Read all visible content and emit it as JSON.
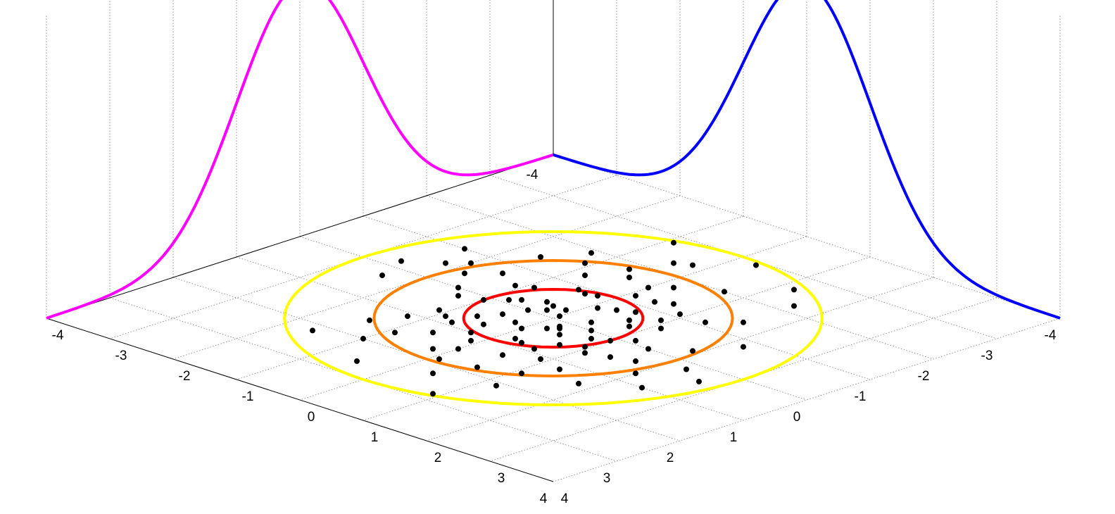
{
  "chart_data": {
    "type": "scatter",
    "subtype": "3d-bivariate-normal-with-marginals",
    "title": "",
    "xlabel": "",
    "ylabel": "",
    "zlabel": "",
    "xlim": [
      -4,
      4
    ],
    "ylim": [
      -4,
      4
    ],
    "x_ticks": [
      "-4",
      "-3",
      "-2",
      "-1",
      "0",
      "1",
      "2",
      "3",
      "4"
    ],
    "y_ticks": [
      "-4",
      "-3",
      "-2",
      "-1",
      "0",
      "1",
      "2",
      "3",
      "4"
    ],
    "x_tick_values": [
      -4,
      -3,
      -2,
      -1,
      0,
      1,
      2,
      3,
      4
    ],
    "y_tick_values": [
      -4,
      -3,
      -2,
      -1,
      0,
      1,
      2,
      3,
      4
    ],
    "grid": true,
    "distribution": {
      "mean": [
        0,
        0
      ],
      "sigma_x": 1.0,
      "sigma_y": 1.0
    },
    "marginal_curves": [
      {
        "axis": "x",
        "color": "#ff00ff",
        "x": [
          -4,
          -3.5,
          -3,
          -2.5,
          -2,
          -1.5,
          -1,
          -0.5,
          0,
          0.5,
          1,
          1.5,
          2,
          2.5,
          3,
          3.5,
          4
        ],
        "density": [
          0.0001,
          0.0009,
          0.0044,
          0.0175,
          0.054,
          0.1295,
          0.242,
          0.3521,
          0.3989,
          0.3521,
          0.242,
          0.1295,
          0.054,
          0.0175,
          0.0044,
          0.0009,
          0.0001
        ]
      },
      {
        "axis": "y",
        "color": "#0000ff",
        "x": [
          -4,
          -3.5,
          -3,
          -2.5,
          -2,
          -1.5,
          -1,
          -0.5,
          0,
          0.5,
          1,
          1.5,
          2,
          2.5,
          3,
          3.5,
          4
        ],
        "density": [
          0.0001,
          0.0009,
          0.0044,
          0.0175,
          0.054,
          0.1295,
          0.242,
          0.3521,
          0.3989,
          0.3521,
          0.242,
          0.1295,
          0.054,
          0.0175,
          0.0044,
          0.0009,
          0.0001
        ]
      }
    ],
    "contours": [
      {
        "sigma": 1,
        "color": "#ff0000"
      },
      {
        "sigma": 2,
        "color": "#ff8000"
      },
      {
        "sigma": 3,
        "color": "#ffff00"
      }
    ],
    "series": [
      {
        "color": "#000000",
        "points": [
          [
            -0.5,
            -2.2
          ],
          [
            2.1,
            1.2
          ],
          [
            -2.4,
            -0.2
          ],
          [
            -2.9,
            0.3
          ],
          [
            0.4,
            2.7
          ],
          [
            -0.8,
            2.2
          ],
          [
            1.6,
            -0.9
          ],
          [
            -1.4,
            1.6
          ],
          [
            0.3,
            -2.4
          ],
          [
            -1.9,
            -1.3
          ],
          [
            -0.3,
            1.9
          ],
          [
            1.9,
            0.1
          ],
          [
            -2.6,
            1.2
          ],
          [
            2.6,
            -0.5
          ],
          [
            -0.7,
            -1.5
          ],
          [
            1.2,
            1.3
          ],
          [
            -1.2,
            0.4
          ],
          [
            0.7,
            -1.1
          ],
          [
            -0.4,
            0.8
          ],
          [
            1.3,
            0.5
          ],
          [
            0.5,
            1.4
          ],
          [
            -1.6,
            -0.4
          ],
          [
            0.2,
            0.3
          ],
          [
            -0.9,
            -0.2
          ],
          [
            0.8,
            0.2
          ],
          [
            -0.1,
            -0.8
          ],
          [
            1.0,
            -0.3
          ],
          [
            -0.6,
            1.1
          ],
          [
            0.3,
            -0.5
          ],
          [
            -1.1,
            0.9
          ],
          [
            1.5,
            -1.4
          ],
          [
            -1.3,
            -0.8
          ],
          [
            0.6,
            0.7
          ],
          [
            -0.3,
            -0.3
          ],
          [
            0.1,
            1.0
          ],
          [
            1.1,
            0.9
          ],
          [
            -0.8,
            0.5
          ],
          [
            0.4,
            -0.2
          ],
          [
            -0.2,
            0.4
          ],
          [
            0.9,
            -0.7
          ],
          [
            -1.7,
            0.2
          ],
          [
            1.7,
            -0.2
          ],
          [
            -0.5,
            -1.1
          ],
          [
            0.2,
            -1.3
          ],
          [
            -1.4,
            -1.6
          ],
          [
            1.4,
            1.8
          ],
          [
            -2.0,
            0.7
          ],
          [
            2.0,
            -1.0
          ],
          [
            -0.1,
            0.0
          ],
          [
            0.5,
            0.0
          ],
          [
            -0.6,
            0.1
          ],
          [
            0.0,
            -0.4
          ],
          [
            0.0,
            0.6
          ],
          [
            0.3,
            0.2
          ],
          [
            -0.3,
            -0.1
          ],
          [
            0.7,
            -0.4
          ],
          [
            -0.7,
            0.3
          ],
          [
            0.2,
            0.8
          ],
          [
            -0.2,
            -0.7
          ],
          [
            1.2,
            -0.1
          ],
          [
            -1.2,
            0.1
          ],
          [
            0.6,
            1.1
          ],
          [
            -0.6,
            -0.9
          ],
          [
            0.9,
            0.6
          ],
          [
            -0.9,
            -0.5
          ],
          [
            1.3,
            -0.6
          ],
          [
            -1.3,
            0.6
          ],
          [
            0.1,
            -1.0
          ],
          [
            -0.1,
            1.2
          ],
          [
            0.8,
            -0.9
          ],
          [
            -0.8,
            0.9
          ],
          [
            1.8,
            0.6
          ],
          [
            -1.8,
            -0.6
          ],
          [
            0.4,
            1.7
          ],
          [
            -0.4,
            -1.8
          ],
          [
            2.3,
            0.4
          ],
          [
            -2.3,
            -0.4
          ],
          [
            0.7,
            2.0
          ],
          [
            -0.7,
            -2.0
          ],
          [
            1.6,
            1.1
          ],
          [
            -1.6,
            -1.1
          ],
          [
            2.2,
            -1.6
          ],
          [
            -2.2,
            1.6
          ],
          [
            1.0,
            2.4
          ],
          [
            -1.0,
            -2.4
          ],
          [
            2.8,
            0.9
          ],
          [
            -2.8,
            -0.9
          ],
          [
            0.2,
            2.3
          ],
          [
            -0.2,
            -2.6
          ],
          [
            1.5,
            0.0
          ],
          [
            -1.5,
            0.0
          ],
          [
            0.0,
            1.5
          ],
          [
            0.0,
            -1.5
          ],
          [
            1.1,
            -1.2
          ],
          [
            -1.1,
            1.3
          ],
          [
            0.35,
            0.45
          ],
          [
            -0.35,
            -0.45
          ],
          [
            0.55,
            -0.65
          ],
          [
            -0.55,
            0.65
          ],
          [
            0.15,
            0.25
          ],
          [
            -0.15,
            -0.25
          ],
          [
            0.85,
            0.35
          ],
          [
            -0.85,
            -0.35
          ],
          [
            0.45,
            0.95
          ]
        ]
      }
    ]
  }
}
